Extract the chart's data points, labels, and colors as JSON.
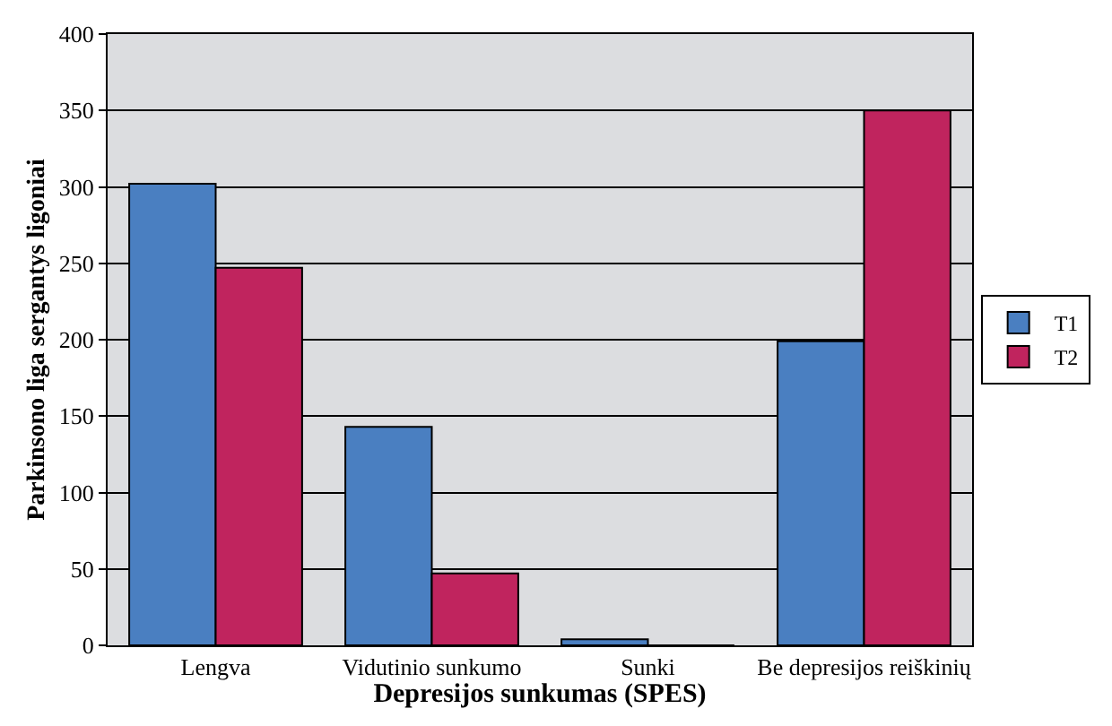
{
  "chart_data": {
    "type": "bar",
    "xlabel": "Depresijos sunkumas (SPES)",
    "ylabel": "Parkinsono liga sergantys ligoniai",
    "categories": [
      "Lengva",
      "Vidutinio sunkumo",
      "Sunki",
      "Be depresijos reiškinių"
    ],
    "series": [
      {
        "name": "T1",
        "color": "#4a7fc1",
        "values": [
          302,
          143,
          4,
          199
        ]
      },
      {
        "name": "T2",
        "color": "#c0245e",
        "values": [
          247,
          47,
          0,
          350
        ]
      }
    ],
    "ylim": [
      0,
      400
    ],
    "yticks": [
      0,
      50,
      100,
      150,
      200,
      250,
      300,
      350,
      400
    ],
    "grid": "y",
    "legend": "right"
  }
}
